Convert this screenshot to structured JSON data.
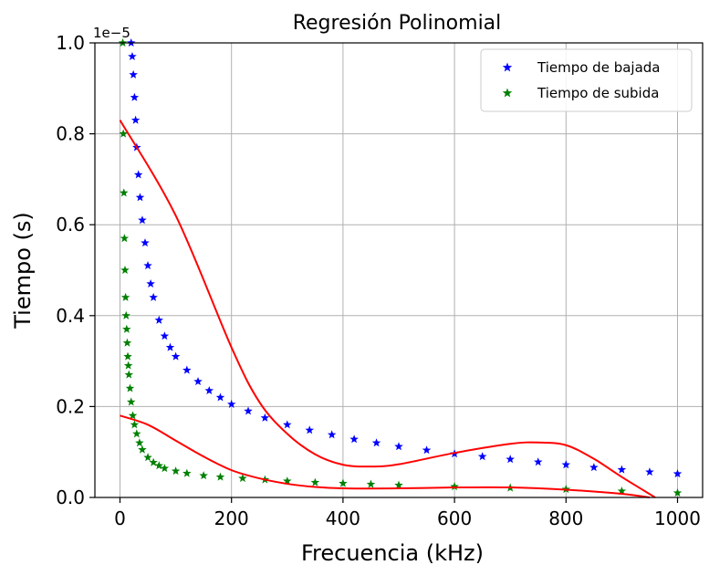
{
  "chart_data": {
    "type": "scatter",
    "title": "Regresión Polinomial",
    "xlabel": "Frecuencia (kHz)",
    "ylabel": "Tiempo (s)",
    "y_offset_label": "1e−5",
    "xlim": [
      -45,
      1045
    ],
    "ylim": [
      0,
      1.0
    ],
    "y_scale_factor": 1e-05,
    "grid": true,
    "legend_position": "top-right",
    "x_ticks": [
      0,
      200,
      400,
      600,
      800,
      1000
    ],
    "x_tick_labels": [
      "0",
      "200",
      "400",
      "600",
      "800",
      "1000"
    ],
    "y_ticks": [
      0.0,
      0.2,
      0.4,
      0.6,
      0.8,
      1.0
    ],
    "y_tick_labels": [
      "0.0",
      "0.2",
      "0.4",
      "0.6",
      "0.8",
      "1.0"
    ],
    "series": [
      {
        "name": "Tiempo de bajada",
        "color": "#0000ff",
        "marker": "star",
        "x": [
          20,
          22,
          24,
          26,
          28,
          30,
          33,
          36,
          40,
          45,
          50,
          55,
          60,
          70,
          80,
          90,
          100,
          120,
          140,
          160,
          180,
          200,
          230,
          260,
          300,
          340,
          380,
          420,
          460,
          500,
          550,
          600,
          650,
          700,
          750,
          800,
          850,
          900,
          950,
          1000
        ],
        "y": [
          1.0,
          0.97,
          0.93,
          0.88,
          0.83,
          0.77,
          0.71,
          0.66,
          0.61,
          0.56,
          0.51,
          0.47,
          0.44,
          0.39,
          0.355,
          0.33,
          0.31,
          0.28,
          0.255,
          0.235,
          0.22,
          0.205,
          0.19,
          0.175,
          0.16,
          0.148,
          0.138,
          0.128,
          0.12,
          0.112,
          0.104,
          0.096,
          0.09,
          0.084,
          0.078,
          0.072,
          0.066,
          0.061,
          0.056,
          0.052
        ]
      },
      {
        "name": "Tiempo de subida",
        "color": "#008000",
        "marker": "star",
        "x": [
          5,
          6,
          7,
          8,
          9,
          10,
          11,
          12,
          13,
          14,
          15,
          16,
          18,
          20,
          23,
          26,
          30,
          35,
          40,
          50,
          60,
          70,
          80,
          100,
          120,
          150,
          180,
          220,
          260,
          300,
          350,
          400,
          450,
          500,
          600,
          700,
          800,
          900,
          1000
        ],
        "y": [
          1.0,
          0.8,
          0.67,
          0.57,
          0.5,
          0.44,
          0.4,
          0.37,
          0.34,
          0.31,
          0.29,
          0.27,
          0.24,
          0.21,
          0.18,
          0.16,
          0.14,
          0.12,
          0.105,
          0.088,
          0.077,
          0.07,
          0.064,
          0.058,
          0.053,
          0.048,
          0.045,
          0.042,
          0.039,
          0.036,
          0.033,
          0.031,
          0.029,
          0.027,
          0.024,
          0.021,
          0.018,
          0.014,
          0.01
        ]
      }
    ],
    "fit_lines": [
      {
        "color": "#ff0000",
        "x": [
          0,
          100,
          200,
          250,
          300,
          350,
          400,
          450,
          500,
          600,
          700,
          750,
          800,
          850,
          900,
          960
        ],
        "y": [
          0.83,
          0.62,
          0.33,
          0.21,
          0.14,
          0.095,
          0.072,
          0.068,
          0.073,
          0.098,
          0.118,
          0.121,
          0.115,
          0.085,
          0.045,
          0.0
        ]
      },
      {
        "color": "#ff0000",
        "x": [
          0,
          50,
          100,
          150,
          200,
          250,
          300,
          350,
          400,
          500,
          600,
          700,
          800,
          900,
          950
        ],
        "y": [
          0.18,
          0.16,
          0.125,
          0.09,
          0.06,
          0.042,
          0.03,
          0.023,
          0.02,
          0.02,
          0.022,
          0.022,
          0.017,
          0.008,
          0.0
        ]
      }
    ]
  }
}
